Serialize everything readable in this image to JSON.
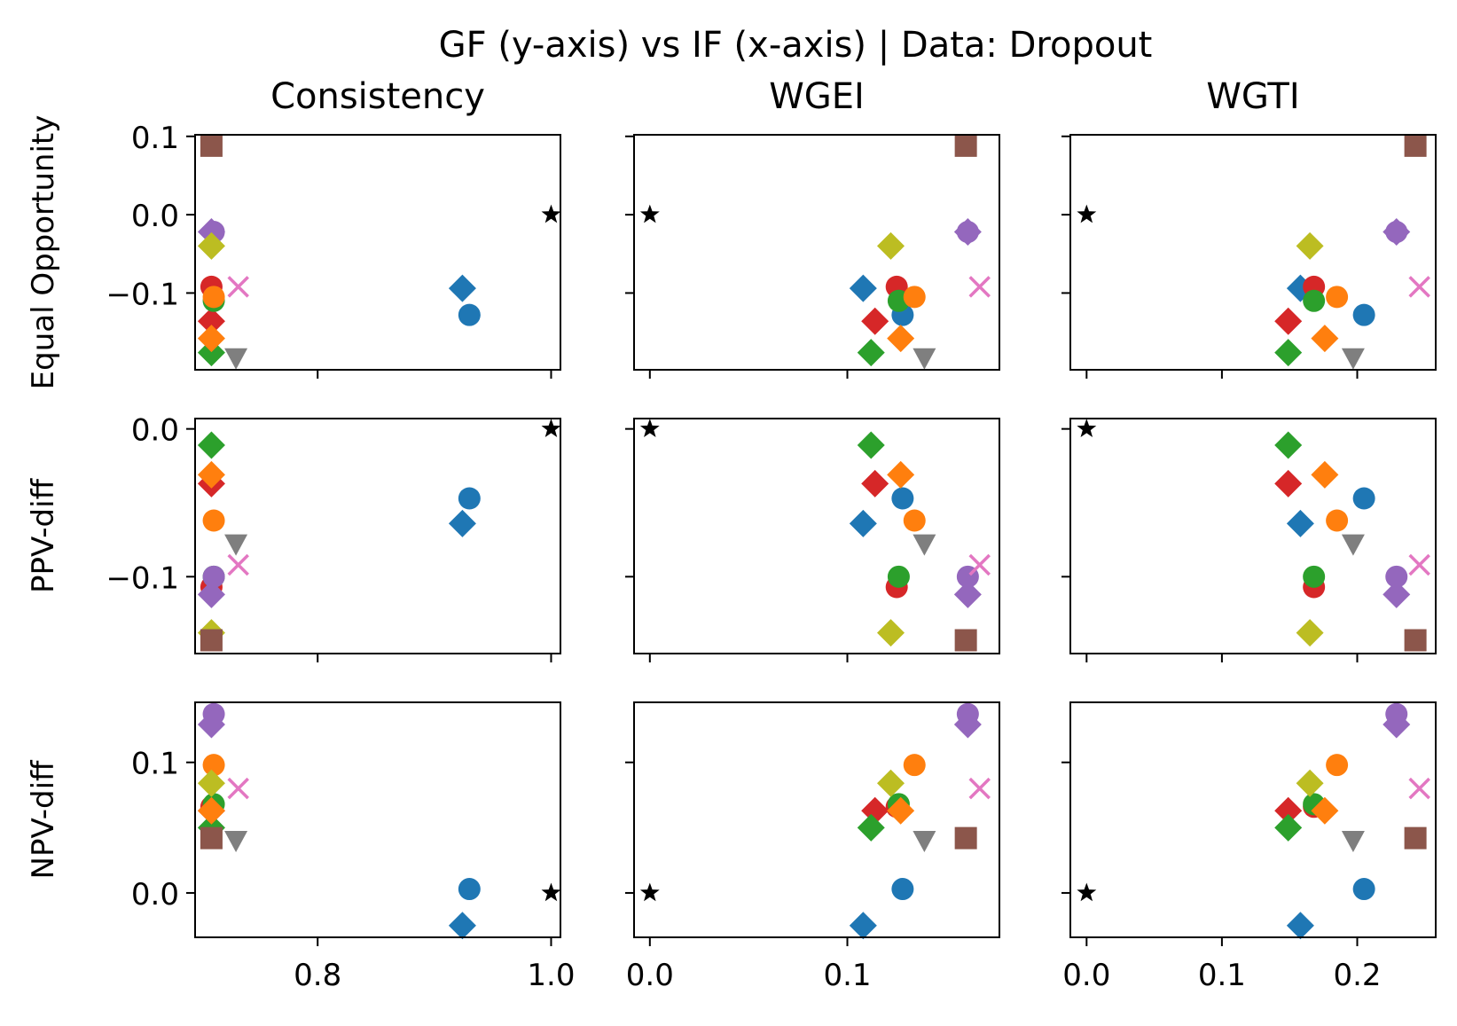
{
  "chart_data": {
    "type": "scatter",
    "title": "GF (y-axis) vs IF (x-axis) | Data: Dropout",
    "columns": [
      {
        "title": "Consistency",
        "xlim": [
          0.695,
          1.008
        ],
        "xticks": [
          0.8,
          1.0
        ],
        "xtick_labels": [
          "0.8",
          "1.0"
        ]
      },
      {
        "title": "WGEI",
        "xlim": [
          -0.008,
          0.177
        ],
        "xticks": [
          0.0,
          0.1
        ],
        "xtick_labels": [
          "0.0",
          "0.1"
        ]
      },
      {
        "title": "WGTI",
        "xlim": [
          -0.012,
          0.258
        ],
        "xticks": [
          0.0,
          0.1,
          0.2
        ],
        "xtick_labels": [
          "0.0",
          "0.1",
          "0.2"
        ]
      }
    ],
    "rows": [
      {
        "ylabel": "Equal Opportunity",
        "ylim": [
          -0.198,
          0.102
        ],
        "yticks": [
          0.1,
          0.0,
          -0.1
        ],
        "ytick_labels": [
          "0.1",
          "0.0",
          "−0.1"
        ]
      },
      {
        "ylabel": "PPV-diff",
        "ylim": [
          -0.152,
          0.007
        ],
        "yticks": [
          0.0,
          -0.1
        ],
        "ytick_labels": [
          "0.0",
          "−0.1"
        ]
      },
      {
        "ylabel": "NPV-diff",
        "ylim": [
          -0.034,
          0.146
        ],
        "yticks": [
          0.1,
          0.0
        ],
        "ytick_labels": [
          "0.1",
          "0.0"
        ]
      }
    ],
    "grid": false,
    "legend": "none",
    "series": [
      {
        "marker": "circle",
        "color": "#1f77b4",
        "x": [
          0.93,
          0.128,
          0.205
        ],
        "y": [
          -0.128,
          -0.047,
          0.003
        ]
      },
      {
        "marker": "diamond",
        "color": "#1f77b4",
        "x": [
          0.924,
          0.108,
          0.158
        ],
        "y": [
          -0.094,
          -0.064,
          -0.025
        ]
      },
      {
        "marker": "circle",
        "color": "#d62728",
        "x": [
          0.709,
          0.125,
          0.168
        ],
        "y": [
          -0.092,
          -0.107,
          0.066
        ]
      },
      {
        "marker": "diamond",
        "color": "#d62728",
        "x": [
          0.709,
          0.114,
          0.149
        ],
        "y": [
          -0.136,
          -0.037,
          0.063
        ]
      },
      {
        "marker": "circle",
        "color": "#2ca02c",
        "x": [
          0.711,
          0.126,
          0.168
        ],
        "y": [
          -0.11,
          -0.1,
          0.068
        ]
      },
      {
        "marker": "diamond",
        "color": "#2ca02c",
        "x": [
          0.709,
          0.112,
          0.149
        ],
        "y": [
          -0.176,
          -0.011,
          0.05
        ]
      },
      {
        "marker": "circle",
        "color": "#ff7f0e",
        "x": [
          0.711,
          0.134,
          0.185
        ],
        "y": [
          -0.105,
          -0.062,
          0.098
        ]
      },
      {
        "marker": "diamond",
        "color": "#ff7f0e",
        "x": [
          0.709,
          0.127,
          0.176
        ],
        "y": [
          -0.158,
          -0.031,
          0.063
        ]
      },
      {
        "marker": "circle",
        "color": "#9467bd",
        "x": [
          0.711,
          0.161,
          0.229
        ],
        "y": [
          -0.022,
          -0.1,
          0.137
        ]
      },
      {
        "marker": "diamond",
        "color": "#9467bd",
        "x": [
          0.709,
          0.161,
          0.229
        ],
        "y": [
          -0.022,
          -0.112,
          0.129
        ]
      },
      {
        "marker": "diamond",
        "color": "#bcbd22",
        "x": [
          0.709,
          0.122,
          0.165
        ],
        "y": [
          -0.04,
          -0.138,
          0.084
        ]
      },
      {
        "marker": "square",
        "color": "#8c564b",
        "x": [
          0.709,
          0.16,
          0.243
        ],
        "y": [
          0.088,
          -0.143,
          0.042
        ]
      },
      {
        "marker": "triangle-down",
        "color": "#7f7f7f",
        "x": [
          0.73,
          0.139,
          0.197
        ],
        "y": [
          -0.183,
          -0.078,
          0.04
        ]
      },
      {
        "marker": "x",
        "color": "#e377c2",
        "x": [
          0.732,
          0.167,
          0.246
        ],
        "y": [
          -0.092,
          -0.092,
          0.08
        ]
      },
      {
        "marker": "star",
        "color": "#000000",
        "x": [
          1.0,
          0.0,
          0.0
        ],
        "y": [
          0.0,
          0.0,
          0.0
        ]
      }
    ]
  }
}
